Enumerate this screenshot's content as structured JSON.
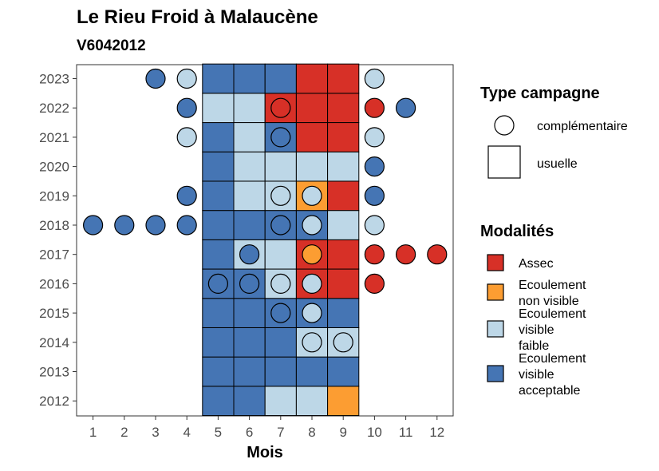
{
  "chart_data": {
    "type": "heatmap",
    "title": "Le Rieu Froid à Malaucène",
    "subtitle": "V6042012",
    "xlabel": "Mois",
    "ylabel": "",
    "x_ticks": [
      "1",
      "2",
      "3",
      "4",
      "5",
      "6",
      "7",
      "8",
      "9",
      "10",
      "11",
      "12"
    ],
    "y_ticks": [
      "2012",
      "2013",
      "2014",
      "2015",
      "2016",
      "2017",
      "2018",
      "2019",
      "2020",
      "2021",
      "2022",
      "2023"
    ],
    "modalities": [
      {
        "key": "assec",
        "label_lines": [
          "Assec"
        ],
        "color": "#d73027"
      },
      {
        "key": "nonvisible",
        "label_lines": [
          "Ecoulement",
          "non visible"
        ],
        "color": "#fc9d32"
      },
      {
        "key": "faible",
        "label_lines": [
          "Ecoulement",
          "visible",
          "faible"
        ],
        "color": "#bdd7e7"
      },
      {
        "key": "acceptable",
        "label_lines": [
          "Ecoulement",
          "visible",
          "acceptable"
        ],
        "color": "#4575b4"
      }
    ],
    "campaign_types": [
      {
        "key": "complementaire",
        "label": "complémentaire",
        "shape": "circle"
      },
      {
        "key": "usuelle",
        "label": "usuelle",
        "shape": "square"
      }
    ],
    "legend_titles": {
      "campaign": "Type campagne",
      "modality": "Modalités"
    },
    "usuelle": [
      {
        "year": 2012,
        "month": 5,
        "m": "acceptable"
      },
      {
        "year": 2012,
        "month": 6,
        "m": "acceptable"
      },
      {
        "year": 2012,
        "month": 7,
        "m": "faible"
      },
      {
        "year": 2012,
        "month": 8,
        "m": "faible"
      },
      {
        "year": 2012,
        "month": 9,
        "m": "nonvisible"
      },
      {
        "year": 2013,
        "month": 5,
        "m": "acceptable"
      },
      {
        "year": 2013,
        "month": 6,
        "m": "acceptable"
      },
      {
        "year": 2013,
        "month": 7,
        "m": "acceptable"
      },
      {
        "year": 2013,
        "month": 8,
        "m": "acceptable"
      },
      {
        "year": 2013,
        "month": 9,
        "m": "acceptable"
      },
      {
        "year": 2014,
        "month": 5,
        "m": "acceptable"
      },
      {
        "year": 2014,
        "month": 6,
        "m": "acceptable"
      },
      {
        "year": 2014,
        "month": 7,
        "m": "acceptable"
      },
      {
        "year": 2014,
        "month": 8,
        "m": "faible"
      },
      {
        "year": 2014,
        "month": 9,
        "m": "faible"
      },
      {
        "year": 2015,
        "month": 5,
        "m": "acceptable"
      },
      {
        "year": 2015,
        "month": 6,
        "m": "acceptable"
      },
      {
        "year": 2015,
        "month": 7,
        "m": "acceptable"
      },
      {
        "year": 2015,
        "month": 8,
        "m": "acceptable"
      },
      {
        "year": 2015,
        "month": 9,
        "m": "acceptable"
      },
      {
        "year": 2016,
        "month": 5,
        "m": "acceptable"
      },
      {
        "year": 2016,
        "month": 6,
        "m": "acceptable"
      },
      {
        "year": 2016,
        "month": 7,
        "m": "faible"
      },
      {
        "year": 2016,
        "month": 8,
        "m": "assec"
      },
      {
        "year": 2016,
        "month": 9,
        "m": "assec"
      },
      {
        "year": 2017,
        "month": 5,
        "m": "acceptable"
      },
      {
        "year": 2017,
        "month": 6,
        "m": "faible"
      },
      {
        "year": 2017,
        "month": 7,
        "m": "faible"
      },
      {
        "year": 2017,
        "month": 8,
        "m": "assec"
      },
      {
        "year": 2017,
        "month": 9,
        "m": "assec"
      },
      {
        "year": 2018,
        "month": 5,
        "m": "acceptable"
      },
      {
        "year": 2018,
        "month": 6,
        "m": "acceptable"
      },
      {
        "year": 2018,
        "month": 7,
        "m": "acceptable"
      },
      {
        "year": 2018,
        "month": 8,
        "m": "acceptable"
      },
      {
        "year": 2018,
        "month": 9,
        "m": "faible"
      },
      {
        "year": 2019,
        "month": 5,
        "m": "acceptable"
      },
      {
        "year": 2019,
        "month": 6,
        "m": "faible"
      },
      {
        "year": 2019,
        "month": 7,
        "m": "faible"
      },
      {
        "year": 2019,
        "month": 8,
        "m": "nonvisible"
      },
      {
        "year": 2019,
        "month": 9,
        "m": "assec"
      },
      {
        "year": 2020,
        "month": 5,
        "m": "acceptable"
      },
      {
        "year": 2020,
        "month": 6,
        "m": "faible"
      },
      {
        "year": 2020,
        "month": 7,
        "m": "faible"
      },
      {
        "year": 2020,
        "month": 8,
        "m": "faible"
      },
      {
        "year": 2020,
        "month": 9,
        "m": "faible"
      },
      {
        "year": 2021,
        "month": 5,
        "m": "acceptable"
      },
      {
        "year": 2021,
        "month": 6,
        "m": "faible"
      },
      {
        "year": 2021,
        "month": 7,
        "m": "acceptable"
      },
      {
        "year": 2021,
        "month": 8,
        "m": "assec"
      },
      {
        "year": 2021,
        "month": 9,
        "m": "assec"
      },
      {
        "year": 2022,
        "month": 5,
        "m": "faible"
      },
      {
        "year": 2022,
        "month": 6,
        "m": "faible"
      },
      {
        "year": 2022,
        "month": 7,
        "m": "assec"
      },
      {
        "year": 2022,
        "month": 8,
        "m": "assec"
      },
      {
        "year": 2022,
        "month": 9,
        "m": "assec"
      },
      {
        "year": 2023,
        "month": 5,
        "m": "acceptable"
      },
      {
        "year": 2023,
        "month": 6,
        "m": "acceptable"
      },
      {
        "year": 2023,
        "month": 7,
        "m": "acceptable"
      },
      {
        "year": 2023,
        "month": 8,
        "m": "assec"
      },
      {
        "year": 2023,
        "month": 9,
        "m": "assec"
      }
    ],
    "complementaire": [
      {
        "year": 2014,
        "month": 8,
        "m": "faible"
      },
      {
        "year": 2014,
        "month": 9,
        "m": "faible"
      },
      {
        "year": 2015,
        "month": 7,
        "m": "acceptable"
      },
      {
        "year": 2015,
        "month": 8,
        "m": "faible"
      },
      {
        "year": 2016,
        "month": 5,
        "m": "acceptable"
      },
      {
        "year": 2016,
        "month": 6,
        "m": "acceptable"
      },
      {
        "year": 2016,
        "month": 7,
        "m": "faible"
      },
      {
        "year": 2016,
        "month": 8,
        "m": "faible"
      },
      {
        "year": 2016,
        "month": 10,
        "m": "assec"
      },
      {
        "year": 2017,
        "month": 6,
        "m": "acceptable"
      },
      {
        "year": 2017,
        "month": 8,
        "m": "nonvisible"
      },
      {
        "year": 2017,
        "month": 10,
        "m": "assec"
      },
      {
        "year": 2017,
        "month": 11,
        "m": "assec"
      },
      {
        "year": 2017,
        "month": 12,
        "m": "assec"
      },
      {
        "year": 2018,
        "month": 1,
        "m": "acceptable"
      },
      {
        "year": 2018,
        "month": 2,
        "m": "acceptable"
      },
      {
        "year": 2018,
        "month": 3,
        "m": "acceptable"
      },
      {
        "year": 2018,
        "month": 4,
        "m": "acceptable"
      },
      {
        "year": 2018,
        "month": 7,
        "m": "acceptable"
      },
      {
        "year": 2018,
        "month": 8,
        "m": "faible"
      },
      {
        "year": 2018,
        "month": 10,
        "m": "faible"
      },
      {
        "year": 2019,
        "month": 4,
        "m": "acceptable"
      },
      {
        "year": 2019,
        "month": 7,
        "m": "faible"
      },
      {
        "year": 2019,
        "month": 8,
        "m": "faible"
      },
      {
        "year": 2019,
        "month": 10,
        "m": "acceptable"
      },
      {
        "year": 2020,
        "month": 10,
        "m": "acceptable"
      },
      {
        "year": 2021,
        "month": 4,
        "m": "faible"
      },
      {
        "year": 2021,
        "month": 7,
        "m": "acceptable"
      },
      {
        "year": 2021,
        "month": 10,
        "m": "faible"
      },
      {
        "year": 2022,
        "month": 4,
        "m": "acceptable"
      },
      {
        "year": 2022,
        "month": 7,
        "m": "assec"
      },
      {
        "year": 2022,
        "month": 10,
        "m": "assec"
      },
      {
        "year": 2022,
        "month": 11,
        "m": "acceptable"
      },
      {
        "year": 2023,
        "month": 3,
        "m": "acceptable"
      },
      {
        "year": 2023,
        "month": 4,
        "m": "faible"
      },
      {
        "year": 2023,
        "month": 10,
        "m": "faible"
      }
    ]
  }
}
